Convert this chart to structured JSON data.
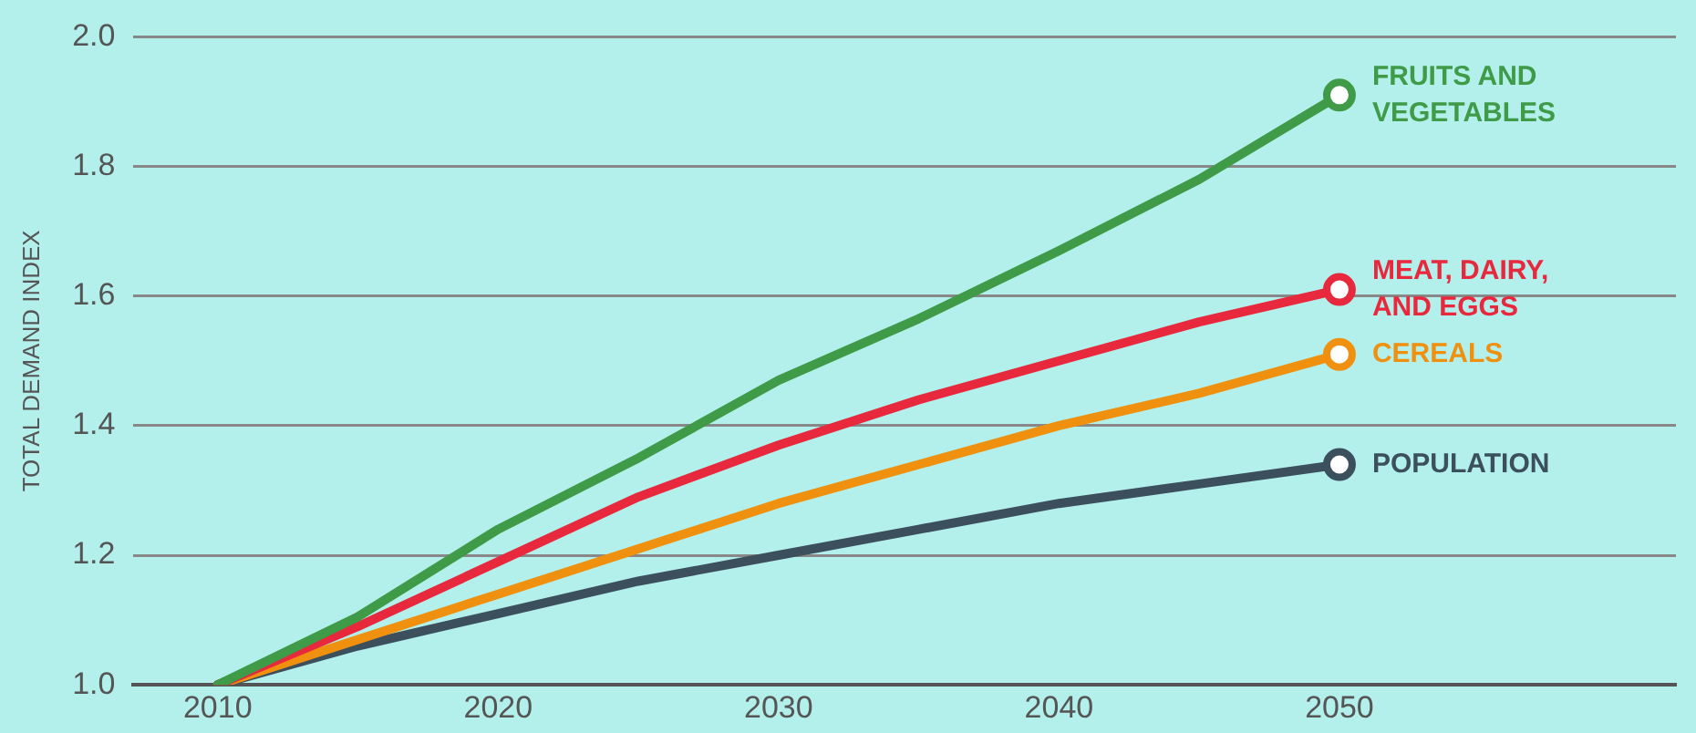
{
  "chart_data": {
    "type": "line",
    "ylabel": "TOTAL DEMAND INDEX",
    "x": [
      2010,
      2015,
      2020,
      2025,
      2030,
      2035,
      2040,
      2045,
      2050
    ],
    "xlim": [
      2007,
      2062
    ],
    "xticks": [
      2010,
      2020,
      2030,
      2040,
      2050
    ],
    "ylim": [
      1.0,
      2.0
    ],
    "yticks": [
      {
        "value": 1.0,
        "label": "1.0"
      },
      1.2,
      1.4,
      1.6,
      1.8,
      {
        "value": 2.0,
        "label": "2.0"
      }
    ],
    "grid": "y",
    "legend": false,
    "series": [
      {
        "name": "FRUITS AND VEGETABLES",
        "color": "#3f9b47",
        "values": [
          1.0,
          1.105,
          1.24,
          1.35,
          1.47,
          1.565,
          1.67,
          1.78,
          1.91
        ]
      },
      {
        "name": "MEAT, DAIRY, AND EGGS",
        "color": "#e8283c",
        "values": [
          1.0,
          1.09,
          1.19,
          1.29,
          1.37,
          1.44,
          1.5,
          1.56,
          1.61
        ]
      },
      {
        "name": "CEREALS",
        "color": "#f0900f",
        "values": [
          1.0,
          1.07,
          1.14,
          1.21,
          1.28,
          1.34,
          1.4,
          1.45,
          1.51
        ]
      },
      {
        "name": "POPULATION",
        "color": "#3c4f5c",
        "values": [
          1.0,
          1.06,
          1.11,
          1.16,
          1.2,
          1.24,
          1.28,
          1.31,
          1.34
        ]
      }
    ]
  }
}
